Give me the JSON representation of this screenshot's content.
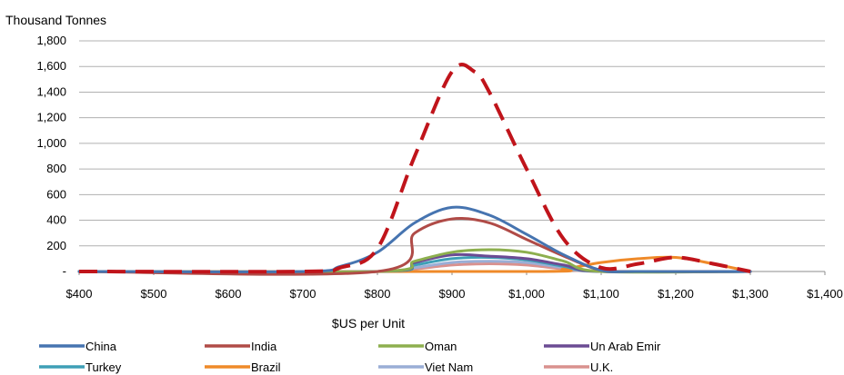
{
  "chart_data": {
    "type": "line",
    "title": "",
    "ylabel": "Thousand Tonnes",
    "xlabel": "$US per Unit",
    "xlim": [
      400,
      1400
    ],
    "ylim": [
      0,
      1800
    ],
    "x_ticks": [
      400,
      500,
      600,
      700,
      800,
      900,
      1000,
      1100,
      1200,
      1300,
      1400
    ],
    "x_tick_labels": [
      "$400",
      "$500",
      "$600",
      "$700",
      "$800",
      "$900",
      "$1,000",
      "$1,100",
      "$1,200",
      "$1,300",
      "$1,400"
    ],
    "y_ticks": [
      0,
      200,
      400,
      600,
      800,
      1000,
      1200,
      1400,
      1600,
      1800
    ],
    "y_tick_labels": [
      "-",
      "200",
      "400",
      "600",
      "800",
      "1,000",
      "1,200",
      "1,400",
      "1,600",
      "1,800"
    ],
    "grid": "horizontal",
    "legend_position": "bottom",
    "series": [
      {
        "name": "China",
        "color": "#4674b0",
        "dashed": false,
        "x": [
          400,
          700,
          750,
          800,
          850,
          900,
          950,
          1000,
          1050,
          1100,
          1150,
          1300
        ],
        "y": [
          0,
          0,
          40,
          150,
          380,
          500,
          440,
          290,
          130,
          10,
          0,
          0
        ]
      },
      {
        "name": "India",
        "color": "#b04b47",
        "dashed": false,
        "x": [
          400,
          800,
          850,
          900,
          950,
          1000,
          1050,
          1100,
          1150,
          1300
        ],
        "y": [
          0,
          0,
          300,
          410,
          380,
          250,
          120,
          10,
          0,
          0
        ]
      },
      {
        "name": "Oman",
        "color": "#8daf4e",
        "dashed": false,
        "x": [
          400,
          800,
          850,
          900,
          950,
          1000,
          1050,
          1100,
          1300
        ],
        "y": [
          0,
          0,
          80,
          150,
          170,
          150,
          80,
          0,
          0
        ]
      },
      {
        "name": "Un Arab Emir",
        "color": "#6b4b93",
        "dashed": false,
        "x": [
          400,
          800,
          850,
          900,
          950,
          1000,
          1050,
          1100,
          1300
        ],
        "y": [
          0,
          0,
          70,
          130,
          120,
          100,
          50,
          0,
          0
        ]
      },
      {
        "name": "Turkey",
        "color": "#3e9fb6",
        "dashed": false,
        "x": [
          400,
          800,
          850,
          900,
          950,
          1000,
          1050,
          1100,
          1300
        ],
        "y": [
          0,
          0,
          50,
          100,
          110,
          90,
          40,
          0,
          0
        ]
      },
      {
        "name": "Brazil",
        "color": "#ef8a29",
        "dashed": false,
        "x": [
          400,
          1000,
          1050,
          1100,
          1150,
          1200,
          1250,
          1300
        ],
        "y": [
          0,
          0,
          20,
          70,
          100,
          110,
          60,
          0
        ]
      },
      {
        "name": "Viet Nam",
        "color": "#9aaed6",
        "dashed": false,
        "x": [
          400,
          800,
          850,
          900,
          950,
          1000,
          1050,
          1100,
          1300
        ],
        "y": [
          0,
          0,
          30,
          70,
          80,
          70,
          30,
          0,
          0
        ]
      },
      {
        "name": "U.K.",
        "color": "#d9918e",
        "dashed": false,
        "x": [
          400,
          800,
          850,
          900,
          950,
          1000,
          1050,
          1100,
          1300
        ],
        "y": [
          0,
          0,
          20,
          50,
          60,
          50,
          20,
          0,
          0
        ]
      },
      {
        "name": "",
        "color": "#c0141b",
        "dashed": true,
        "x": [
          400,
          700,
          750,
          800,
          850,
          900,
          930,
          950,
          1000,
          1050,
          1100,
          1150,
          1200,
          1250,
          1300
        ],
        "y": [
          0,
          0,
          30,
          180,
          900,
          1560,
          1560,
          1400,
          800,
          250,
          30,
          60,
          110,
          60,
          0
        ]
      }
    ]
  }
}
